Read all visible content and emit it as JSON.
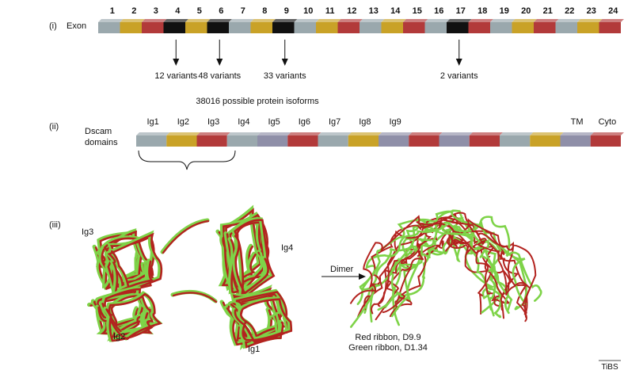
{
  "panel_i": {
    "marker": "(i)",
    "row_label": "Exon",
    "exons": [
      {
        "n": "1",
        "color": "gray"
      },
      {
        "n": "2",
        "color": "gold"
      },
      {
        "n": "3",
        "color": "red"
      },
      {
        "n": "4",
        "color": "black"
      },
      {
        "n": "5",
        "color": "gold"
      },
      {
        "n": "6",
        "color": "black"
      },
      {
        "n": "7",
        "color": "gray"
      },
      {
        "n": "8",
        "color": "gold"
      },
      {
        "n": "9",
        "color": "black"
      },
      {
        "n": "10",
        "color": "gray"
      },
      {
        "n": "11",
        "color": "gold"
      },
      {
        "n": "12",
        "color": "red"
      },
      {
        "n": "13",
        "color": "gray"
      },
      {
        "n": "14",
        "color": "gold"
      },
      {
        "n": "15",
        "color": "red"
      },
      {
        "n": "16",
        "color": "gray"
      },
      {
        "n": "17",
        "color": "black"
      },
      {
        "n": "18",
        "color": "red"
      },
      {
        "n": "19",
        "color": "gray"
      },
      {
        "n": "20",
        "color": "gold"
      },
      {
        "n": "21",
        "color": "red"
      },
      {
        "n": "22",
        "color": "gray"
      },
      {
        "n": "23",
        "color": "gold"
      },
      {
        "n": "24",
        "color": "red"
      }
    ],
    "variants": [
      {
        "exon": "4",
        "label": "12 variants"
      },
      {
        "exon": "6",
        "label": "48 variants"
      },
      {
        "exon": "9",
        "label": "33 variants"
      },
      {
        "exon": "17",
        "label": "2 variants"
      }
    ],
    "isoforms": "38016 possible protein isoforms"
  },
  "panel_ii": {
    "marker": "(ii)",
    "row_label_line1": "Dscam",
    "row_label_line2": "domains",
    "domains": [
      {
        "label": "Ig1",
        "color": "gray"
      },
      {
        "label": "Ig2",
        "color": "gold"
      },
      {
        "label": "Ig3",
        "color": "red"
      },
      {
        "label": "Ig4",
        "color": "gray"
      },
      {
        "label": "Ig5",
        "color": "purple"
      },
      {
        "label": "Ig6",
        "color": "red"
      },
      {
        "label": "Ig7",
        "color": "gray"
      },
      {
        "label": "Ig8",
        "color": "gold"
      },
      {
        "label": "Ig9",
        "color": "purple"
      },
      {
        "label": "",
        "color": "red"
      },
      {
        "label": "",
        "color": "purple"
      },
      {
        "label": "",
        "color": "red"
      },
      {
        "label": "",
        "color": "gray"
      },
      {
        "label": "",
        "color": "gold"
      },
      {
        "label": "TM",
        "color": "purple"
      },
      {
        "label": "Cyto",
        "color": "red"
      }
    ]
  },
  "panel_iii": {
    "marker": "(iii)",
    "ig3": "Ig3",
    "ig4": "Ig4",
    "ig2": "Ig2",
    "ig1": "Ig1",
    "dimer": "Dimer",
    "legend_red": "Red ribbon, D9.9",
    "legend_green": "Green ribbon, D1.34"
  },
  "credit": "TiBS",
  "colors": {
    "gray": "#9aa8ad",
    "gold": "#c9a227",
    "red": "#b23a3a",
    "black": "#111111",
    "purple": "#8f8fa8",
    "ribbon_red": "#b3231f",
    "ribbon_green": "#7ed348"
  }
}
